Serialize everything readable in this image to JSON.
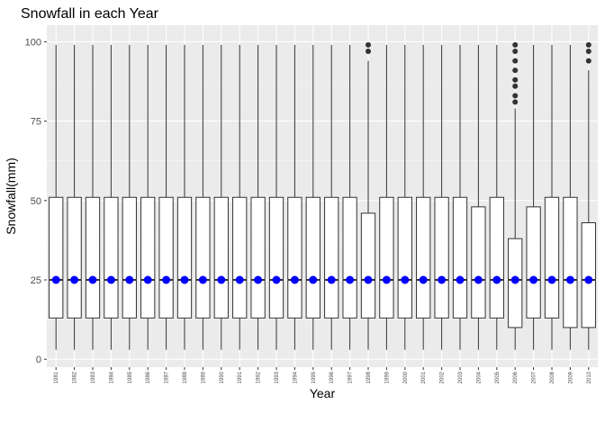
{
  "chart_data": {
    "type": "box",
    "title": "Snowfall in each Year",
    "xlabel": "Year",
    "ylabel": "Snowfall(mm)",
    "ylim": [
      0,
      100
    ],
    "yticks": [
      0,
      25,
      50,
      75,
      100
    ],
    "grid": true,
    "legend": "none",
    "colors": {
      "panel": "#ebebeb",
      "grid_major": "#ffffff",
      "grid_minor": "#f5f5f5",
      "box_fill": "#ffffff",
      "box_line": "#333333",
      "outlier": "#333333",
      "mean_point": "#0000ff"
    },
    "categories": [
      "1981",
      "1982",
      "1983",
      "1984",
      "1985",
      "1986",
      "1987",
      "1988",
      "1989",
      "1990",
      "1991",
      "1992",
      "1993",
      "1994",
      "1995",
      "1996",
      "1997",
      "1998",
      "1999",
      "2000",
      "2001",
      "2002",
      "2003",
      "2004",
      "2005",
      "2006",
      "2007",
      "2008",
      "2009",
      "2010"
    ],
    "boxes": [
      {
        "min": 3,
        "q1": 13,
        "median": 25,
        "q3": 51,
        "max": 99,
        "mean": 25,
        "outliers": []
      },
      {
        "min": 3,
        "q1": 13,
        "median": 25,
        "q3": 51,
        "max": 99,
        "mean": 25,
        "outliers": []
      },
      {
        "min": 3,
        "q1": 13,
        "median": 25,
        "q3": 51,
        "max": 99,
        "mean": 25,
        "outliers": []
      },
      {
        "min": 3,
        "q1": 13,
        "median": 25,
        "q3": 51,
        "max": 99,
        "mean": 25,
        "outliers": []
      },
      {
        "min": 3,
        "q1": 13,
        "median": 25,
        "q3": 51,
        "max": 99,
        "mean": 25,
        "outliers": []
      },
      {
        "min": 3,
        "q1": 13,
        "median": 25,
        "q3": 51,
        "max": 99,
        "mean": 25,
        "outliers": []
      },
      {
        "min": 3,
        "q1": 13,
        "median": 25,
        "q3": 51,
        "max": 99,
        "mean": 25,
        "outliers": []
      },
      {
        "min": 3,
        "q1": 13,
        "median": 25,
        "q3": 51,
        "max": 99,
        "mean": 25,
        "outliers": []
      },
      {
        "min": 3,
        "q1": 13,
        "median": 25,
        "q3": 51,
        "max": 99,
        "mean": 25,
        "outliers": []
      },
      {
        "min": 3,
        "q1": 13,
        "median": 25,
        "q3": 51,
        "max": 99,
        "mean": 25,
        "outliers": []
      },
      {
        "min": 3,
        "q1": 13,
        "median": 25,
        "q3": 51,
        "max": 99,
        "mean": 25,
        "outliers": []
      },
      {
        "min": 3,
        "q1": 13,
        "median": 25,
        "q3": 51,
        "max": 99,
        "mean": 25,
        "outliers": []
      },
      {
        "min": 3,
        "q1": 13,
        "median": 25,
        "q3": 51,
        "max": 99,
        "mean": 25,
        "outliers": []
      },
      {
        "min": 3,
        "q1": 13,
        "median": 25,
        "q3": 51,
        "max": 99,
        "mean": 25,
        "outliers": []
      },
      {
        "min": 3,
        "q1": 13,
        "median": 25,
        "q3": 51,
        "max": 99,
        "mean": 25,
        "outliers": []
      },
      {
        "min": 3,
        "q1": 13,
        "median": 25,
        "q3": 51,
        "max": 99,
        "mean": 25,
        "outliers": []
      },
      {
        "min": 3,
        "q1": 13,
        "median": 25,
        "q3": 51,
        "max": 99,
        "mean": 25,
        "outliers": []
      },
      {
        "min": 3,
        "q1": 13,
        "median": 25,
        "q3": 46,
        "max": 94,
        "mean": 25,
        "outliers": [
          97,
          99
        ]
      },
      {
        "min": 3,
        "q1": 13,
        "median": 25,
        "q3": 51,
        "max": 99,
        "mean": 25,
        "outliers": []
      },
      {
        "min": 3,
        "q1": 13,
        "median": 25,
        "q3": 51,
        "max": 99,
        "mean": 25,
        "outliers": []
      },
      {
        "min": 3,
        "q1": 13,
        "median": 25,
        "q3": 51,
        "max": 99,
        "mean": 25,
        "outliers": []
      },
      {
        "min": 3,
        "q1": 13,
        "median": 25,
        "q3": 51,
        "max": 99,
        "mean": 25,
        "outliers": []
      },
      {
        "min": 3,
        "q1": 13,
        "median": 25,
        "q3": 51,
        "max": 99,
        "mean": 25,
        "outliers": []
      },
      {
        "min": 3,
        "q1": 13,
        "median": 25,
        "q3": 48,
        "max": 99,
        "mean": 25,
        "outliers": []
      },
      {
        "min": 3,
        "q1": 13,
        "median": 25,
        "q3": 51,
        "max": 99,
        "mean": 25,
        "outliers": []
      },
      {
        "min": 3,
        "q1": 10,
        "median": 25,
        "q3": 38,
        "max": 79,
        "mean": 25,
        "outliers": [
          81,
          83,
          86,
          88,
          91,
          94,
          97,
          99
        ]
      },
      {
        "min": 3,
        "q1": 13,
        "median": 25,
        "q3": 48,
        "max": 99,
        "mean": 25,
        "outliers": []
      },
      {
        "min": 3,
        "q1": 13,
        "median": 25,
        "q3": 51,
        "max": 99,
        "mean": 25,
        "outliers": []
      },
      {
        "min": 3,
        "q1": 10,
        "median": 25,
        "q3": 51,
        "max": 99,
        "mean": 25,
        "outliers": []
      },
      {
        "min": 3,
        "q1": 10,
        "median": 25,
        "q3": 43,
        "max": 91,
        "mean": 25,
        "outliers": [
          94,
          97,
          99
        ]
      }
    ]
  }
}
